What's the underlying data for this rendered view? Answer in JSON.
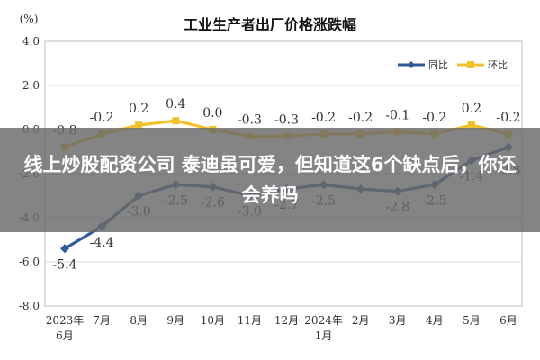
{
  "chart_data": {
    "type": "line",
    "title": "工业生产者出厂价格涨跌幅",
    "ylabel": "(%)",
    "xlabel": "",
    "ylim": [
      -8.0,
      4.0
    ],
    "yticks": [
      "-8.0",
      "-6.0",
      "-4.0",
      "-2.0",
      "0.0",
      "2.0",
      "4.0"
    ],
    "grid": true,
    "legend_position": "top-right",
    "categories": [
      [
        "2023年",
        "6月"
      ],
      [
        "7月"
      ],
      [
        "8月"
      ],
      [
        "9月"
      ],
      [
        "10月"
      ],
      [
        "11月"
      ],
      [
        "12月"
      ],
      [
        "2024年",
        "1月"
      ],
      [
        "2月"
      ],
      [
        "3月"
      ],
      [
        "4月"
      ],
      [
        "5月"
      ],
      [
        "6月"
      ]
    ],
    "series": [
      {
        "name": "同比",
        "color": "#2f5a9a",
        "values": [
          -5.4,
          -4.4,
          -3.0,
          -2.5,
          -2.6,
          -3.0,
          -2.7,
          -2.5,
          -2.7,
          -2.8,
          -2.5,
          -1.4,
          -0.8
        ],
        "labels": [
          "-5.4",
          "-4.4",
          "-3.0",
          "-2.5",
          "-2.6",
          "-3.0",
          "-2.7",
          "-2.5",
          "",
          "-2.8",
          "-2.5",
          "-1.4",
          "-0.8"
        ]
      },
      {
        "name": "环比",
        "color": "#f2c02a",
        "values": [
          -0.8,
          -0.2,
          0.2,
          0.4,
          0.0,
          -0.3,
          -0.3,
          -0.2,
          -0.2,
          -0.1,
          -0.2,
          0.2,
          -0.2
        ],
        "labels": [
          "-0.8",
          "-0.2",
          "0.2",
          "0.4",
          "0.0",
          "-0.3",
          "-0.3",
          "-0.2",
          "-0.2",
          "-0.1",
          "-0.2",
          "0.2",
          "-0.2"
        ]
      }
    ]
  },
  "overlay": {
    "banner_text": "线上炒股配资公司 泰迪虽可爱，但知道这6个缺点后，你还会养吗"
  }
}
